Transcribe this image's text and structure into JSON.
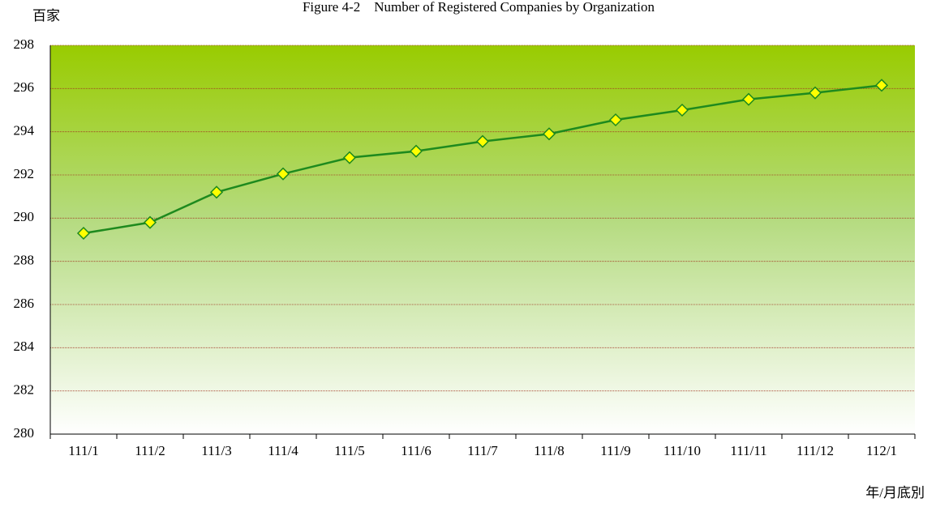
{
  "chart_data": {
    "type": "line",
    "title": "Figure 4-2　Number of Registered Companies by Organization",
    "y_label": "百家",
    "x_label": "年/月底別",
    "categories": [
      "111/1",
      "111/2",
      "111/3",
      "111/4",
      "111/5",
      "111/6",
      "111/7",
      "111/8",
      "111/9",
      "111/10",
      "111/11",
      "111/12",
      "112/1"
    ],
    "series": [
      {
        "name": "Registered Companies",
        "color": "#1e8a1e",
        "marker_color": "#ffff00",
        "values": [
          289.3,
          289.8,
          291.2,
          292.05,
          292.8,
          293.1,
          293.55,
          293.9,
          294.55,
          295.0,
          295.5,
          295.8,
          296.15
        ]
      }
    ],
    "ylim": [
      280,
      298
    ],
    "yticks": [
      280,
      282,
      284,
      286,
      288,
      290,
      292,
      294,
      296,
      298
    ],
    "grid": true
  }
}
